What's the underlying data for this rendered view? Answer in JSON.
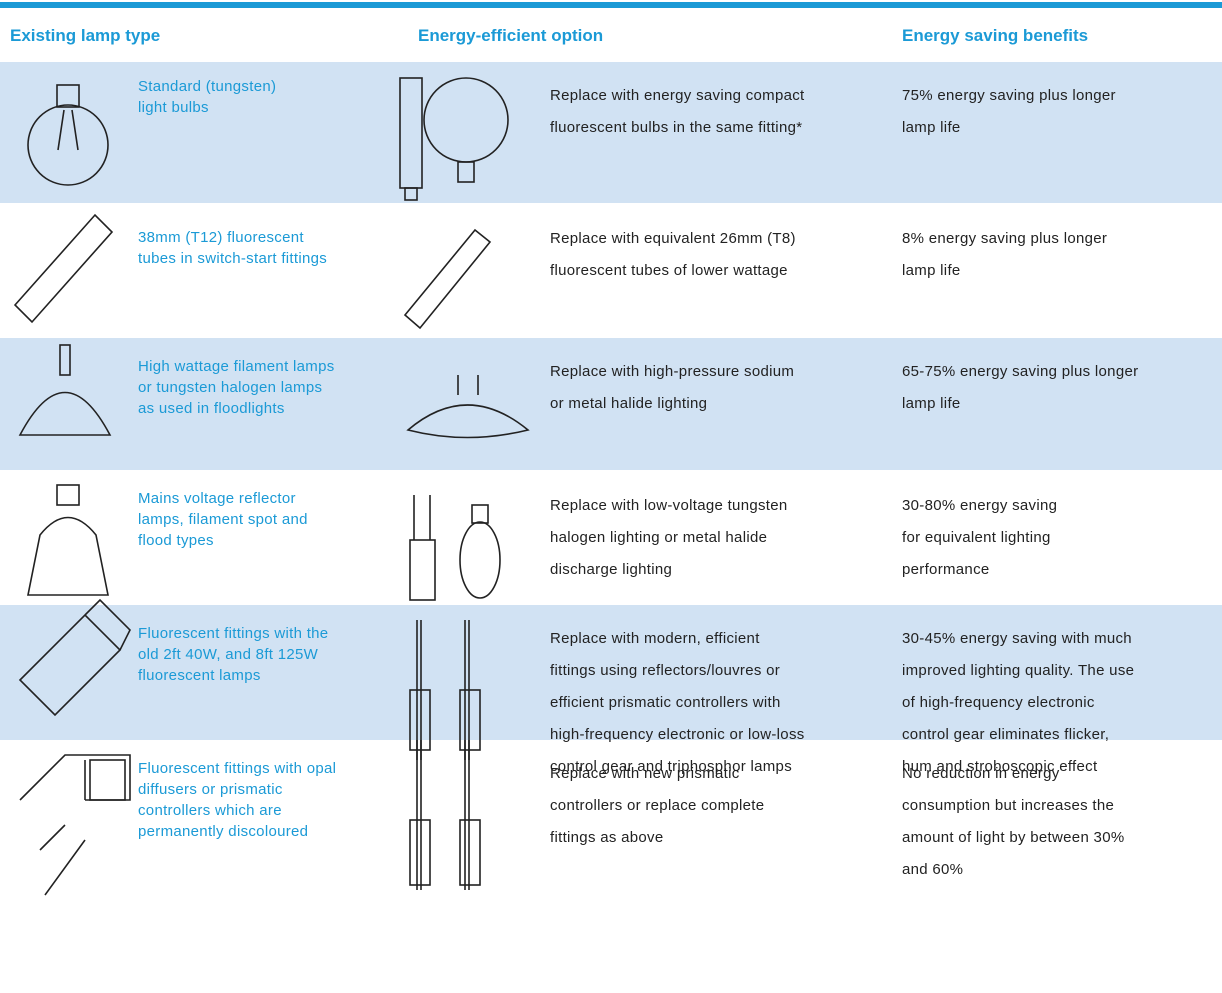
{
  "header": [
    "Existing lamp type",
    "Energy-efficient option",
    "Energy saving benefits"
  ],
  "rows": [
    {
      "existing": [
        "Standard (tungsten)",
        "light bulbs"
      ],
      "option": [
        "Replace with energy saving compact",
        "fluorescent bulbs in the same fitting*"
      ],
      "benefit": [
        "75% energy saving plus longer",
        "lamp life"
      ]
    },
    {
      "existing": [
        "38mm (T12) fluorescent",
        "tubes in switch-start fittings"
      ],
      "option": [
        "Replace with equivalent 26mm (T8)",
        "fluorescent tubes of lower wattage"
      ],
      "benefit": [
        "8% energy saving plus longer",
        "lamp life"
      ]
    },
    {
      "existing": [
        "High wattage filament lamps",
        "or tungsten halogen lamps",
        "as used in floodlights"
      ],
      "option": [
        "Replace with high-pressure sodium",
        "or metal halide lighting"
      ],
      "benefit": [
        "65-75% energy saving plus longer",
        "lamp life"
      ]
    },
    {
      "existing": [
        "Mains voltage reflector",
        "lamps, filament spot and",
        "flood types"
      ],
      "option": [
        "Replace with low-voltage tungsten",
        "halogen lighting or metal halide",
        "discharge lighting"
      ],
      "benefit": [
        "30-80% energy saving",
        "for equivalent lighting",
        "performance"
      ]
    },
    {
      "existing": [
        "Fluorescent fittings with the",
        "old 2ft 40W, and 8ft 125W",
        "fluorescent lamps"
      ],
      "option": [
        "Replace with modern, efficient",
        "fittings using reflectors/louvres or",
        "efficient prismatic controllers with",
        "high-frequency electronic or low-loss",
        "control gear and triphosphor lamps"
      ],
      "benefit": [
        "30-45% energy saving with much",
        "improved lighting quality. The use",
        "of high-frequency electronic",
        "control gear eliminates flicker,",
        "hum and stroboscopic effect"
      ]
    },
    {
      "existing": [
        "Fluorescent fittings with opal",
        "diffusers or prismatic",
        "controllers which are",
        "permanently discoloured"
      ],
      "option": [
        "Replace with new prismatic",
        "controllers or replace complete",
        "fittings as above"
      ],
      "benefit": [
        "No reduction in energy",
        "consumption but increases the",
        "amount of light by between 30%",
        "and 60%"
      ]
    }
  ]
}
